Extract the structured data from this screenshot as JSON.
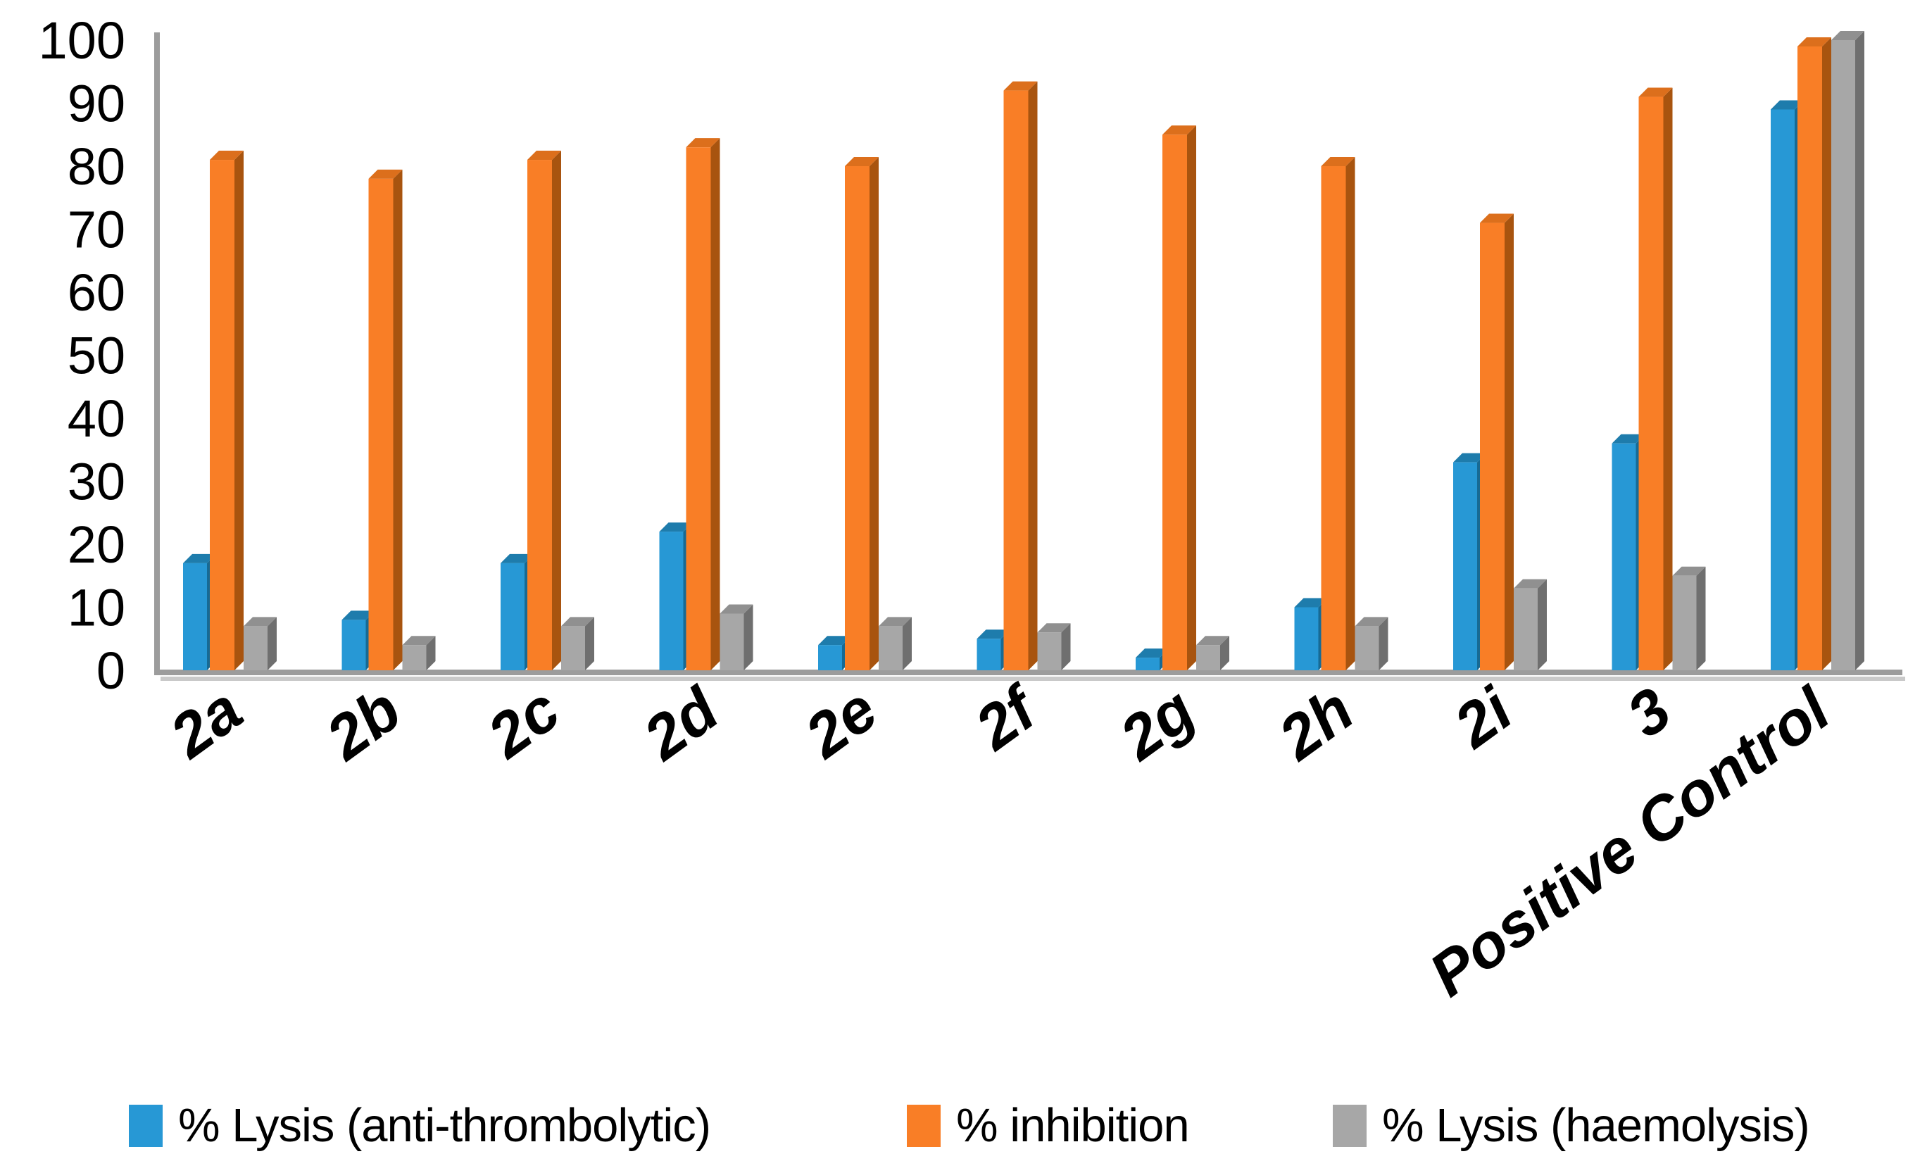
{
  "chart_data": {
    "type": "bar",
    "title": "",
    "xlabel": "",
    "ylabel": "",
    "ylim": [
      0,
      100
    ],
    "y_ticks": [
      0,
      10,
      20,
      30,
      40,
      50,
      60,
      70,
      80,
      90,
      100
    ],
    "grid": false,
    "legend_position": "bottom",
    "bar_style": "3d-clustered",
    "categories": [
      "2a",
      "2b",
      "2c",
      "2d",
      "2e",
      "2f",
      "2g",
      "2h",
      "2i",
      "3",
      "Positive Control"
    ],
    "series": [
      {
        "name": "% Lysis (anti-thrombolytic)",
        "color": "#2798D5",
        "color_top": "#1E7CAC",
        "color_side": "#176A94",
        "values": [
          17,
          8,
          17,
          22,
          4,
          5,
          2,
          10,
          33,
          36,
          89
        ]
      },
      {
        "name": "% inhibition",
        "color": "#F97E26",
        "color_top": "#DC6F1C",
        "color_side": "#A8540F",
        "values": [
          81,
          78,
          81,
          83,
          80,
          92,
          85,
          80,
          71,
          91,
          99
        ]
      },
      {
        "name": "% Lysis (haemolysis)",
        "color": "#A7A7A7",
        "color_top": "#909090",
        "color_side": "#6F6F6F",
        "values": [
          7,
          4,
          7,
          9,
          7,
          6,
          4,
          7,
          13,
          15,
          100
        ]
      }
    ],
    "axis_color": "#9C9C9C"
  }
}
